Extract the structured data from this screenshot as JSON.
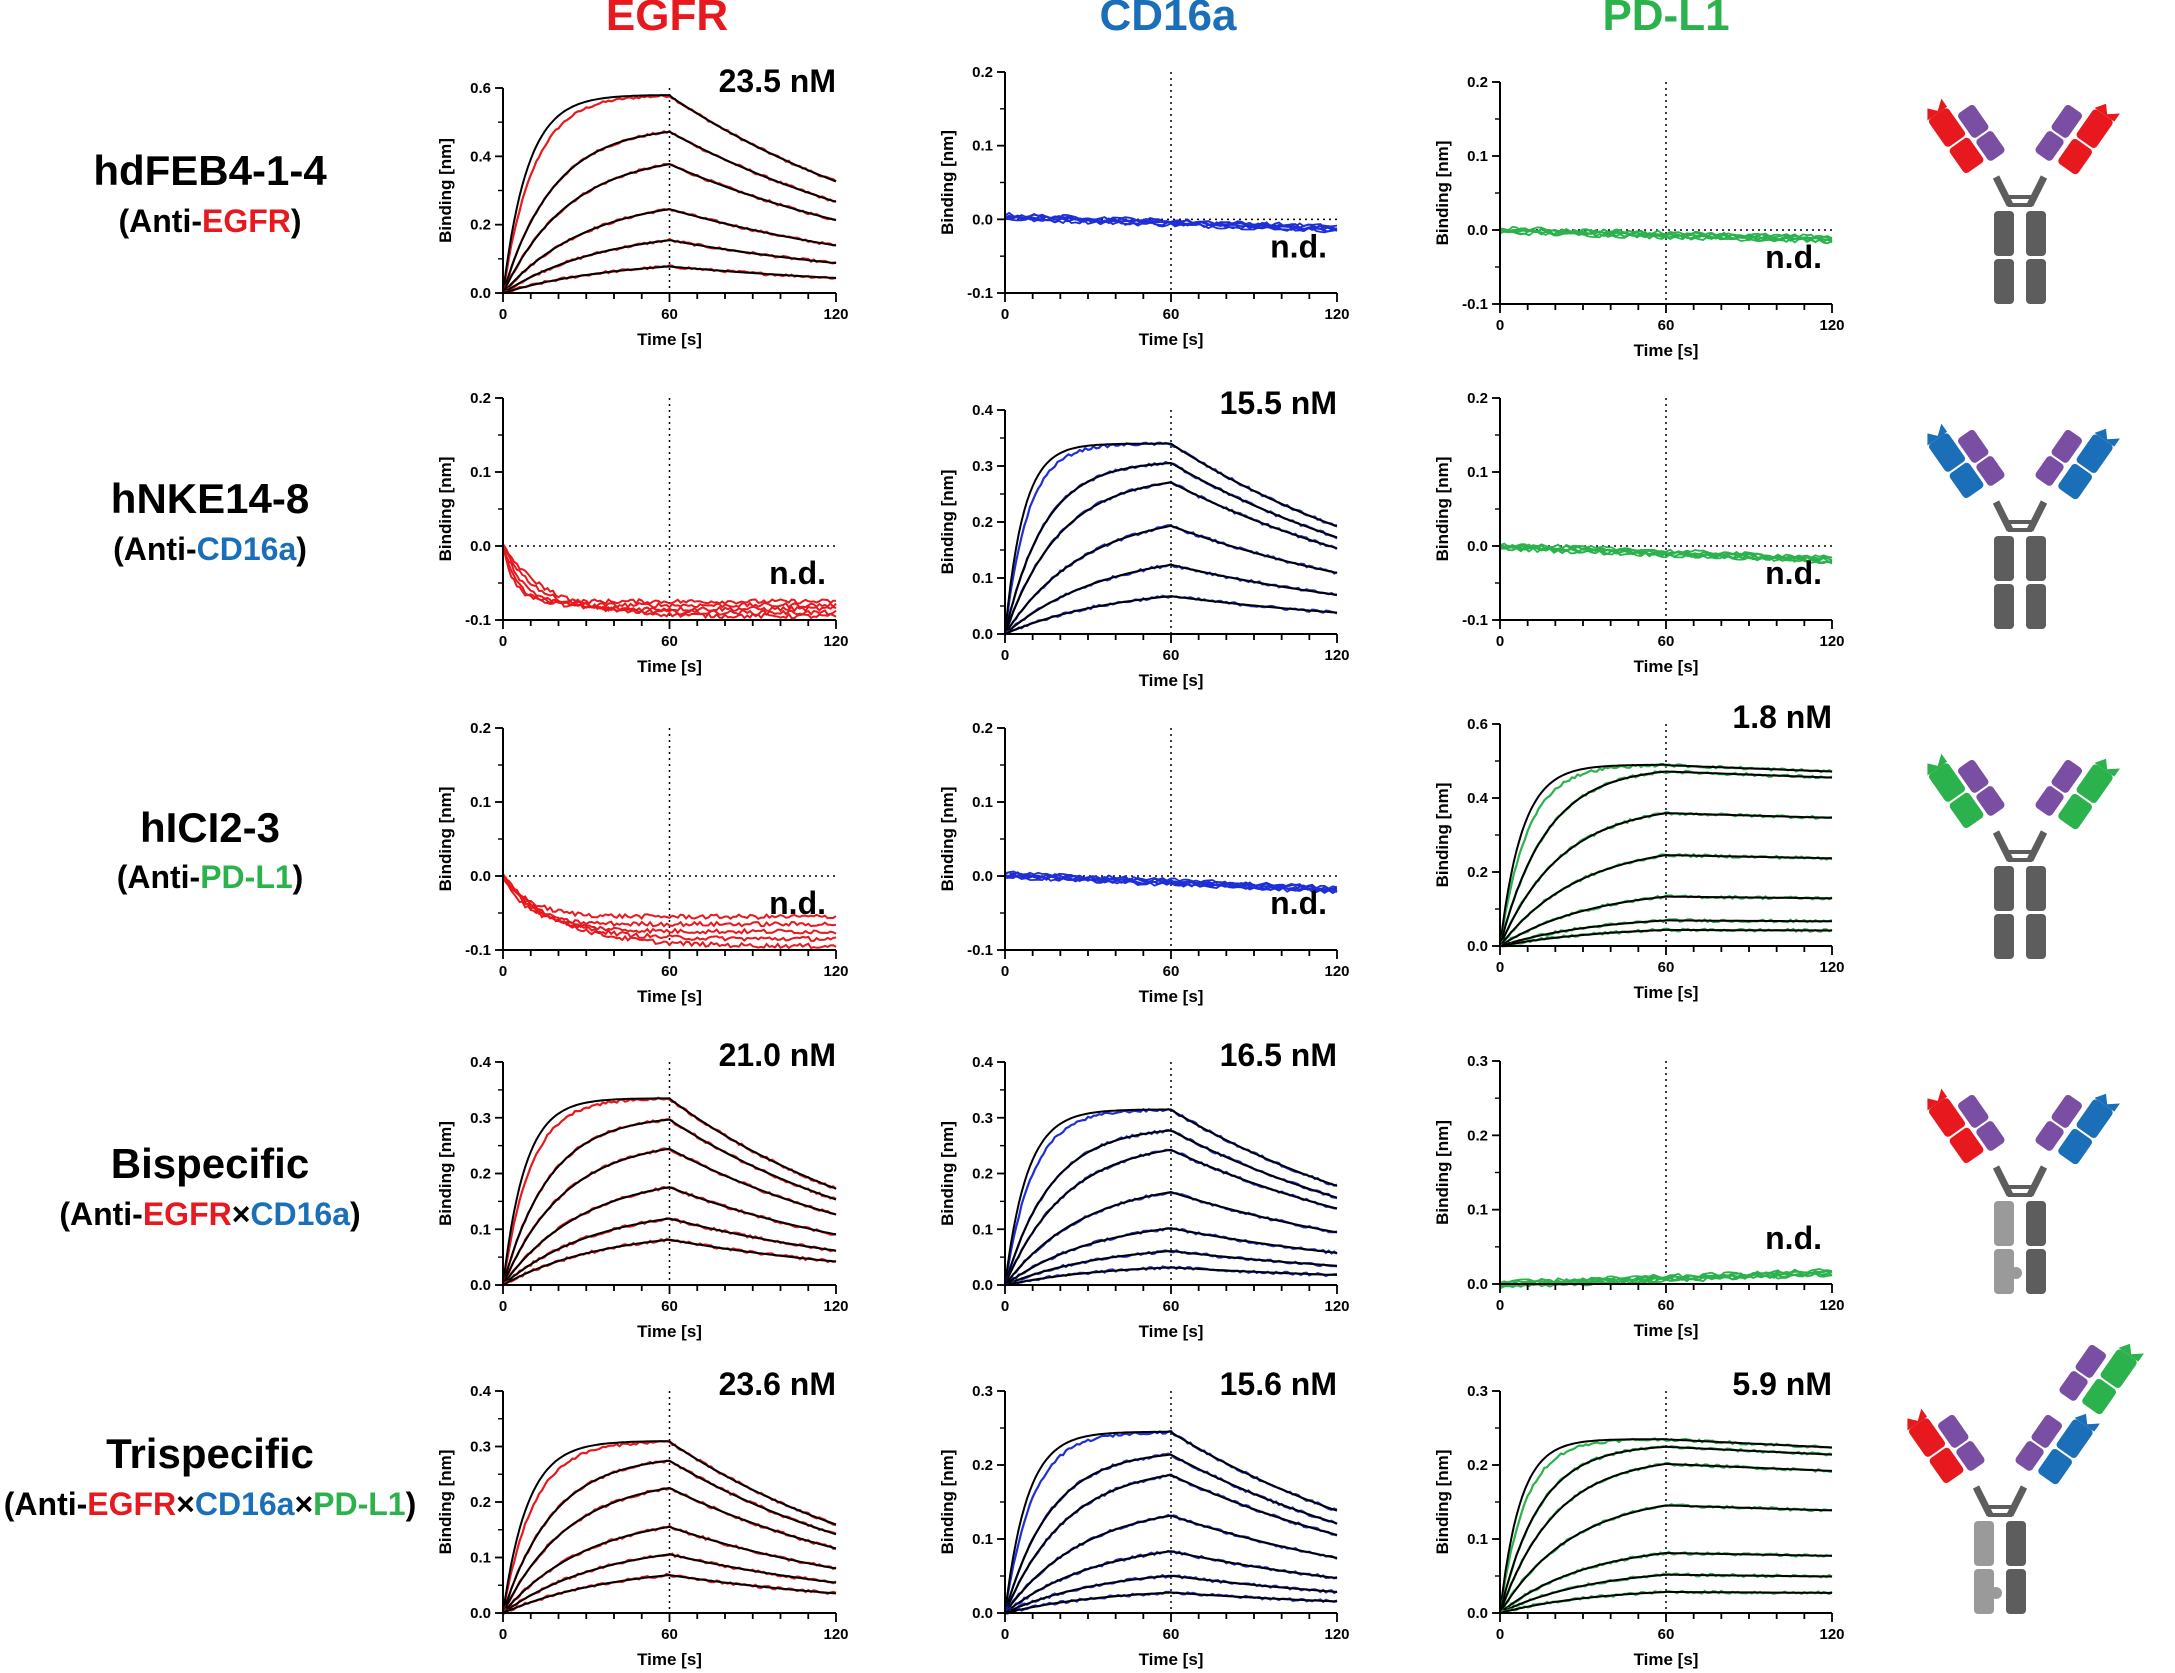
{
  "colors": {
    "EGFR": "#e8191e",
    "CD16a": "#1a6fb8",
    "PDL1": "#2bb24c",
    "purple": "#7a4ea3",
    "gray": "#5d5d5d",
    "lightgray": "#9a9a9a",
    "black": "#000000"
  },
  "curve_colors": {
    "EGFR": "#e8191e",
    "CD16a": "#1f2fd6",
    "PDL1": "#2bb24c"
  },
  "columns": [
    {
      "key": "EGFR",
      "label": "EGFR"
    },
    {
      "key": "CD16a",
      "label": "CD16a"
    },
    {
      "key": "PDL1",
      "label": "PD-L1"
    }
  ],
  "rows": [
    {
      "name": "hdFEB4-1-4",
      "sub": [
        {
          "t": "(Anti-"
        },
        {
          "t": "EGFR",
          "c": "EGFR"
        },
        {
          "t": ")"
        }
      ],
      "arms": [
        "EGFR",
        "EGFR"
      ],
      "icon": "antibody-monospecific-egfr-icon"
    },
    {
      "name": "hNKE14-8",
      "sub": [
        {
          "t": "(Anti-"
        },
        {
          "t": "CD16a",
          "c": "CD16a"
        },
        {
          "t": ")"
        }
      ],
      "arms": [
        "CD16a",
        "CD16a"
      ],
      "icon": "antibody-monospecific-cd16a-icon"
    },
    {
      "name": "hICI2-3",
      "sub": [
        {
          "t": "(Anti-"
        },
        {
          "t": "PD-L1",
          "c": "PDL1"
        },
        {
          "t": ")"
        }
      ],
      "arms": [
        "PDL1",
        "PDL1"
      ],
      "icon": "antibody-monospecific-pdl1-icon"
    },
    {
      "name": "Bispecific",
      "sub": [
        {
          "t": "(Anti-"
        },
        {
          "t": "EGFR",
          "c": "EGFR"
        },
        {
          "t": "×"
        },
        {
          "t": "CD16a",
          "c": "CD16a"
        },
        {
          "t": ")"
        }
      ],
      "arms": [
        "EGFR",
        "CD16a"
      ],
      "icon": "antibody-bispecific-icon"
    },
    {
      "name": "Trispecific",
      "sub": [
        {
          "t": "(Anti-"
        },
        {
          "t": "EGFR",
          "c": "EGFR"
        },
        {
          "t": "×"
        },
        {
          "t": "CD16a",
          "c": "CD16a"
        },
        {
          "t": "×"
        },
        {
          "t": "PD-L1",
          "c": "PDL1"
        },
        {
          "t": ")"
        }
      ],
      "arms": [
        "EGFR",
        "CD16a",
        "PDL1"
      ],
      "icon": "antibody-trispecific-icon"
    }
  ],
  "axes": {
    "xlabel": "Time [s]",
    "ylabel": "Binding [nm]",
    "xlim": [
      0,
      120
    ],
    "xticks": [
      0,
      60,
      120
    ],
    "association_end": 60
  },
  "chart_data": [
    {
      "type": "line",
      "row": 0,
      "col": "EGFR",
      "kd_label": "23.5 nM",
      "ylim": [
        0,
        0.6
      ],
      "yticks": [
        "0.0",
        "0.2",
        "0.4",
        "0.6"
      ],
      "mode": "assoc",
      "plateaus": [
        0.58,
        0.49,
        0.41,
        0.285,
        0.19,
        0.1
      ],
      "kon": [
        0.09,
        0.055,
        0.042,
        0.033,
        0.028,
        0.025
      ],
      "koff": 0.0095
    },
    {
      "type": "line",
      "row": 0,
      "col": "CD16a",
      "kd_label": "n.d.",
      "ylim": [
        -0.1,
        0.2
      ],
      "yticks": [
        "-0.1",
        "0.0",
        "0.1",
        "0.2"
      ],
      "mode": "flat",
      "drift": [
        0.004,
        -0.012
      ],
      "n": 6
    },
    {
      "type": "line",
      "row": 0,
      "col": "PDL1",
      "kd_label": "n.d.",
      "ylim": [
        -0.1,
        0.2
      ],
      "yticks": [
        "-0.1",
        "0.0",
        "0.1",
        "0.2"
      ],
      "mode": "flat",
      "drift": [
        0.0,
        -0.012
      ],
      "n": 6
    },
    {
      "type": "line",
      "row": 1,
      "col": "EGFR",
      "kd_label": "n.d.",
      "ylim": [
        -0.1,
        0.2
      ],
      "yticks": [
        "-0.1",
        "0.0",
        "0.1",
        "0.2"
      ],
      "mode": "neg",
      "levels": [
        -0.075,
        -0.08,
        -0.085,
        -0.09,
        -0.095
      ],
      "rates": [
        0.25,
        0.18,
        0.12,
        0.08,
        0.06
      ]
    },
    {
      "type": "line",
      "row": 1,
      "col": "CD16a",
      "kd_label": "15.5 nM",
      "ylim": [
        0,
        0.4
      ],
      "yticks": [
        "0.0",
        "0.1",
        "0.2",
        "0.3",
        "0.4"
      ],
      "mode": "assoc",
      "plateaus": [
        0.34,
        0.31,
        0.285,
        0.22,
        0.152,
        0.087
      ],
      "kon": [
        0.12,
        0.07,
        0.05,
        0.035,
        0.028,
        0.025
      ],
      "koff": 0.0095
    },
    {
      "type": "line",
      "row": 1,
      "col": "PDL1",
      "kd_label": "n.d.",
      "ylim": [
        -0.1,
        0.2
      ],
      "yticks": [
        "-0.1",
        "0.0",
        "0.1",
        "0.2"
      ],
      "mode": "flat",
      "drift": [
        0.0,
        -0.018
      ],
      "n": 6
    },
    {
      "type": "line",
      "row": 2,
      "col": "EGFR",
      "kd_label": "n.d.",
      "ylim": [
        -0.1,
        0.2
      ],
      "yticks": [
        "-0.1",
        "0.0",
        "0.1",
        "0.2"
      ],
      "mode": "neg",
      "levels": [
        -0.055,
        -0.065,
        -0.075,
        -0.085,
        -0.095
      ],
      "rates": [
        0.1,
        0.12,
        0.08,
        0.06,
        0.05
      ]
    },
    {
      "type": "line",
      "row": 2,
      "col": "CD16a",
      "kd_label": "n.d.",
      "ylim": [
        -0.1,
        0.2
      ],
      "yticks": [
        "-0.1",
        "0.0",
        "0.1",
        "0.2"
      ],
      "mode": "flat",
      "drift": [
        0.002,
        -0.018
      ],
      "n": 6
    },
    {
      "type": "line",
      "row": 2,
      "col": "PDL1",
      "kd_label": "1.8 nM",
      "ylim": [
        0,
        0.6
      ],
      "yticks": [
        "0.0",
        "0.2",
        "0.4",
        "0.6"
      ],
      "mode": "assoc",
      "plateaus": [
        0.49,
        0.485,
        0.385,
        0.28,
        0.16,
        0.085,
        0.055
      ],
      "kon": [
        0.1,
        0.06,
        0.045,
        0.035,
        0.03,
        0.028,
        0.026
      ],
      "koff": 0.0006
    },
    {
      "type": "line",
      "row": 3,
      "col": "EGFR",
      "kd_label": "21.0 nM",
      "ylim": [
        0,
        0.4
      ],
      "yticks": [
        "0.0",
        "0.1",
        "0.2",
        "0.3",
        "0.4"
      ],
      "mode": "assoc",
      "plateaus": [
        0.335,
        0.305,
        0.262,
        0.2,
        0.143,
        0.1
      ],
      "kon": [
        0.1,
        0.06,
        0.045,
        0.035,
        0.03,
        0.028
      ],
      "koff": 0.011
    },
    {
      "type": "line",
      "row": 3,
      "col": "CD16a",
      "kd_label": "16.5 nM",
      "ylim": [
        0,
        0.4
      ],
      "yticks": [
        "0.0",
        "0.1",
        "0.2",
        "0.3",
        "0.4"
      ],
      "mode": "assoc",
      "plateaus": [
        0.315,
        0.285,
        0.26,
        0.19,
        0.122,
        0.075,
        0.04
      ],
      "kon": [
        0.1,
        0.06,
        0.045,
        0.035,
        0.03,
        0.028,
        0.026
      ],
      "koff": 0.0095
    },
    {
      "type": "line",
      "row": 3,
      "col": "PDL1",
      "kd_label": "n.d.",
      "ylim": [
        0,
        0.3
      ],
      "yticks": [
        "0.0",
        "0.1",
        "0.2",
        "0.3"
      ],
      "mode": "flat",
      "drift": [
        0.0,
        0.016
      ],
      "n": 6
    },
    {
      "type": "line",
      "row": 4,
      "col": "EGFR",
      "kd_label": "23.6 nM",
      "ylim": [
        0,
        0.4
      ],
      "yticks": [
        "0.0",
        "0.1",
        "0.2",
        "0.3",
        "0.4"
      ],
      "mode": "assoc",
      "plateaus": [
        0.31,
        0.285,
        0.245,
        0.18,
        0.13,
        0.088
      ],
      "kon": [
        0.09,
        0.055,
        0.042,
        0.033,
        0.028,
        0.025
      ],
      "koff": 0.011
    },
    {
      "type": "line",
      "row": 4,
      "col": "CD16a",
      "kd_label": "15.6 nM",
      "ylim": [
        0,
        0.3
      ],
      "yticks": [
        "0.0",
        "0.1",
        "0.2",
        "0.3"
      ],
      "mode": "assoc",
      "plateaus": [
        0.245,
        0.22,
        0.2,
        0.15,
        0.1,
        0.062,
        0.035
      ],
      "kon": [
        0.1,
        0.06,
        0.045,
        0.035,
        0.03,
        0.028,
        0.026
      ],
      "koff": 0.0095
    },
    {
      "type": "line",
      "row": 4,
      "col": "PDL1",
      "kd_label": "5.9 nM",
      "ylim": [
        0,
        0.3
      ],
      "yticks": [
        "0.0",
        "0.1",
        "0.2",
        "0.3"
      ],
      "mode": "assoc",
      "plateaus": [
        0.235,
        0.228,
        0.212,
        0.162,
        0.095,
        0.062,
        0.035
      ],
      "kon": [
        0.11,
        0.07,
        0.05,
        0.038,
        0.032,
        0.03,
        0.028
      ],
      "koff": 0.0008
    }
  ]
}
